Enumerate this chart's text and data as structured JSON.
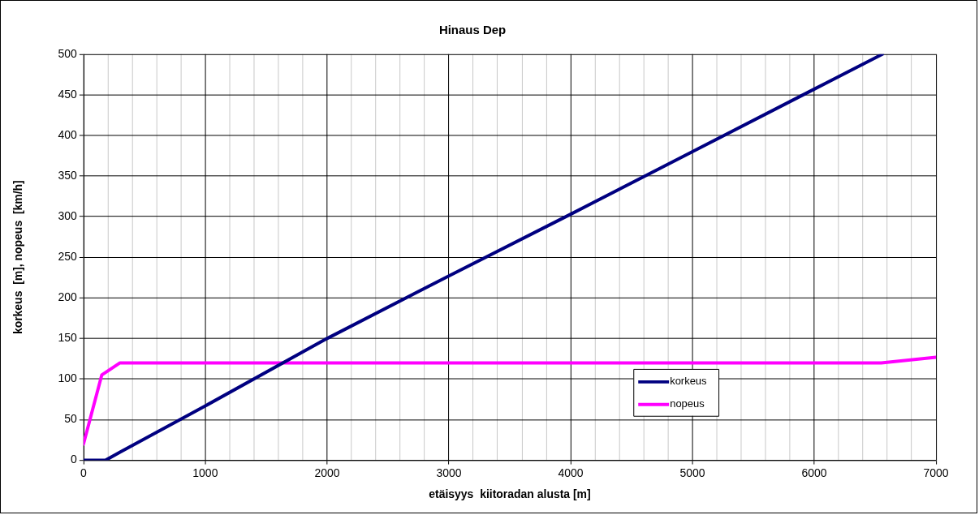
{
  "chart_data": {
    "type": "line",
    "title": "Hinaus Dep",
    "xlabel": "etäisyys  kiitoradan alusta [m]",
    "ylabel": "korkeus  [m], nopeus  [km/h]",
    "xlim": [
      0,
      7000
    ],
    "xticks": [
      0,
      {
        "value": 200,
        "label": null
      },
      {
        "value": 400,
        "label": null
      },
      {
        "value": 600,
        "label": null
      },
      {
        "value": 800,
        "label": null
      },
      1000,
      {
        "value": 1200,
        "label": null
      },
      {
        "value": 1400,
        "label": null
      },
      {
        "value": 1600,
        "label": null
      },
      {
        "value": 1800,
        "label": null
      },
      2000,
      {
        "value": 2200,
        "label": null
      },
      {
        "value": 2400,
        "label": null
      },
      {
        "value": 2600,
        "label": null
      },
      {
        "value": 2800,
        "label": null
      },
      3000,
      {
        "value": 3200,
        "label": null
      },
      {
        "value": 3400,
        "label": null
      },
      {
        "value": 3600,
        "label": null
      },
      {
        "value": 3800,
        "label": null
      },
      4000,
      {
        "value": 4200,
        "label": null
      },
      {
        "value": 4400,
        "label": null
      },
      {
        "value": 4600,
        "label": null
      },
      {
        "value": 4800,
        "label": null
      },
      5000,
      {
        "value": 5200,
        "label": null
      },
      {
        "value": 5400,
        "label": null
      },
      {
        "value": 5600,
        "label": null
      },
      {
        "value": 5800,
        "label": null
      },
      6000,
      {
        "value": 6200,
        "label": null
      },
      {
        "value": 6400,
        "label": null
      },
      {
        "value": 6600,
        "label": null
      },
      {
        "value": 6800,
        "label": null
      },
      7000
    ],
    "ylim": [
      0,
      500
    ],
    "yticks": [
      0,
      50,
      100,
      150,
      200,
      250,
      300,
      350,
      400,
      450,
      500
    ],
    "grid": true,
    "legend": "bottom right",
    "marker": "none",
    "line_style": "solid",
    "series": [
      {
        "name": "korkeus",
        "color": "#000080",
        "x": [
          0,
          180,
          300,
          1000,
          2000,
          3000,
          4000,
          5000,
          6000,
          6560
        ],
        "values": [
          0,
          0,
          10,
          67,
          150,
          227,
          303,
          380,
          457,
          500
        ]
      },
      {
        "name": "nopeus",
        "color": "#ff00ff",
        "x": [
          0,
          150,
          300,
          6550,
          7000
        ],
        "values": [
          20,
          105,
          120,
          120,
          127
        ]
      }
    ]
  }
}
